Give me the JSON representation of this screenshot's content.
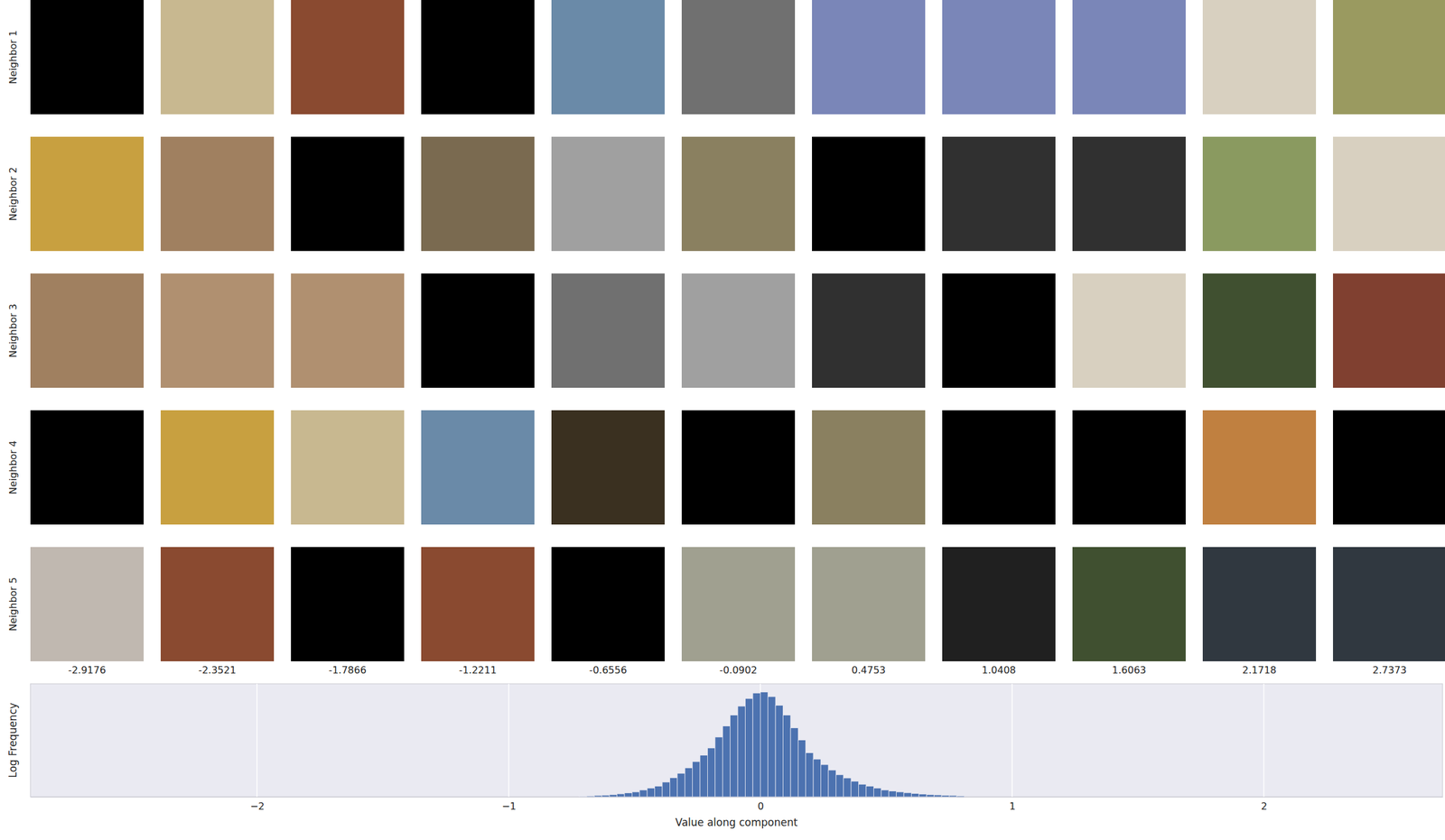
{
  "chart_data": {
    "type": "histogram",
    "x_label": "Value along component",
    "y_label": "Log Frequency",
    "bins": [
      -0.72,
      -0.69,
      -0.66,
      -0.63,
      -0.6,
      -0.57,
      -0.54,
      -0.51,
      -0.48,
      -0.45,
      -0.42,
      -0.39,
      -0.36,
      -0.33,
      -0.3,
      -0.27,
      -0.24,
      -0.21,
      -0.18,
      -0.15,
      -0.12,
      -0.09,
      -0.06,
      -0.03,
      0,
      0.03,
      0.06,
      0.09,
      0.12,
      0.15,
      0.18,
      0.21,
      0.24,
      0.27,
      0.3,
      0.33,
      0.36,
      0.39,
      0.42,
      0.45,
      0.48,
      0.51,
      0.54,
      0.57,
      0.6,
      0.63,
      0.66,
      0.69,
      0.72,
      0.75,
      0.78,
      0.81
    ],
    "values": [
      0.03,
      0.04,
      0.07,
      0.09,
      0.12,
      0.16,
      0.21,
      0.26,
      0.36,
      0.46,
      0.57,
      0.78,
      1.01,
      1.25,
      1.54,
      1.87,
      2.21,
      2.59,
      3.17,
      3.76,
      4.34,
      4.81,
      5.22,
      5.51,
      5.56,
      5.32,
      4.86,
      4.34,
      3.66,
      3.02,
      2.34,
      2.0,
      1.71,
      1.42,
      1.17,
      1.0,
      0.83,
      0.67,
      0.57,
      0.46,
      0.36,
      0.31,
      0.26,
      0.22,
      0.18,
      0.15,
      0.12,
      0.1,
      0.08,
      0.07,
      0.05
    ],
    "color": "#4c72b0",
    "xlim": [
      -2.9,
      2.71
    ],
    "ylim": [
      0,
      6
    ],
    "xticks": [
      {
        "value": -2,
        "label": "−2"
      },
      {
        "value": -1,
        "label": "−1"
      },
      0,
      1,
      2
    ],
    "grid": true,
    "tick_labels": "x"
  },
  "image_grid": {
    "row_labels": [
      "Neighbor 1",
      "Neighbor 2",
      "Neighbor 3",
      "Neighbor 4",
      "Neighbor 5"
    ],
    "column_values": [
      -2.9176,
      -2.3521,
      -1.7866,
      -1.2211,
      -0.6556,
      -0.0902,
      0.4753,
      1.0408,
      1.6063,
      2.1718,
      2.7373
    ]
  }
}
